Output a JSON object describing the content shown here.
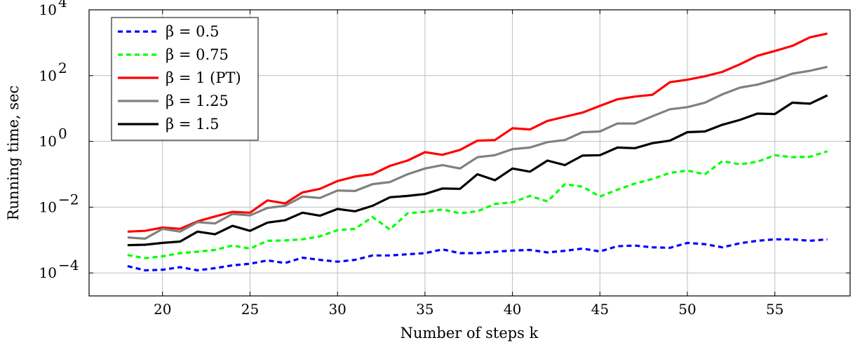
{
  "chart_data": {
    "type": "line",
    "title": "",
    "xlabel": "Number of steps k",
    "ylabel": "Running time, sec",
    "xlim": [
      15.8,
      59.3
    ],
    "ylim": [
      2e-05,
      10000
    ],
    "yscale": "log",
    "grid": true,
    "legend_position": "top-left",
    "x_ticks": [
      20,
      25,
      30,
      35,
      40,
      45,
      50,
      55
    ],
    "x_tick_labels": [
      "20",
      "25",
      "30",
      "35",
      "40",
      "45",
      "50",
      "55"
    ],
    "y_ticks": [
      0.0001,
      0.01,
      1,
      100,
      10000
    ],
    "y_tick_labels": [
      {
        "base": "10",
        "exp": "−4"
      },
      {
        "base": "10",
        "exp": "−2"
      },
      {
        "base": "10",
        "exp": "0"
      },
      {
        "base": "10",
        "exp": "2"
      },
      {
        "base": "10",
        "exp": "4"
      }
    ],
    "x": [
      18,
      19,
      20,
      21,
      22,
      23,
      24,
      25,
      26,
      27,
      28,
      29,
      30,
      31,
      32,
      33,
      34,
      35,
      36,
      37,
      38,
      39,
      40,
      41,
      42,
      43,
      44,
      45,
      46,
      47,
      48,
      49,
      50,
      51,
      52,
      53,
      54,
      55,
      56,
      57,
      58
    ],
    "series": [
      {
        "name": "β = 0.5",
        "color": "#0000ff",
        "dash": "dashed",
        "values": [
          0.00016,
          0.00012,
          0.000125,
          0.00015,
          0.00012,
          0.00014,
          0.00017,
          0.00019,
          0.00024,
          0.0002,
          0.00029,
          0.00025,
          0.00022,
          0.00025,
          0.00034,
          0.00034,
          0.00037,
          0.0004,
          0.00052,
          0.0004,
          0.0004,
          0.00044,
          0.00048,
          0.0005,
          0.00042,
          0.00047,
          0.00055,
          0.00045,
          0.00065,
          0.00068,
          0.0006,
          0.00058,
          0.00082,
          0.00075,
          0.0006,
          0.0008,
          0.00095,
          0.00105,
          0.00105,
          0.00095,
          0.00105
        ]
      },
      {
        "name": "β = 0.75",
        "color": "#00ff00",
        "dash": "dashed",
        "values": [
          0.00035,
          0.00028,
          0.00032,
          0.0004,
          0.00044,
          0.0005,
          0.00068,
          0.00055,
          0.00095,
          0.00097,
          0.00105,
          0.0013,
          0.002,
          0.0022,
          0.005,
          0.0021,
          0.0065,
          0.0072,
          0.0085,
          0.0065,
          0.0075,
          0.0125,
          0.014,
          0.022,
          0.015,
          0.05,
          0.042,
          0.021,
          0.034,
          0.052,
          0.072,
          0.11,
          0.13,
          0.1,
          0.25,
          0.2,
          0.24,
          0.38,
          0.33,
          0.34,
          0.5
        ]
      },
      {
        "name": "β = 1 (PT)",
        "color": "#ff0000",
        "dash": "solid",
        "values": [
          0.0018,
          0.0019,
          0.0024,
          0.0022,
          0.0037,
          0.0052,
          0.0072,
          0.0068,
          0.016,
          0.013,
          0.028,
          0.036,
          0.062,
          0.085,
          0.1,
          0.18,
          0.26,
          0.47,
          0.39,
          0.55,
          1.05,
          1.1,
          2.5,
          2.3,
          4.2,
          5.6,
          7.5,
          12,
          19,
          23,
          26,
          63,
          75,
          95,
          130,
          220,
          400,
          560,
          800,
          1450,
          1900
        ]
      },
      {
        "name": "β = 1.25",
        "color": "#808080",
        "dash": "solid",
        "values": [
          0.0012,
          0.0011,
          0.0022,
          0.0018,
          0.0035,
          0.0032,
          0.0062,
          0.0056,
          0.0095,
          0.011,
          0.021,
          0.019,
          0.032,
          0.031,
          0.05,
          0.058,
          0.1,
          0.15,
          0.19,
          0.15,
          0.33,
          0.38,
          0.58,
          0.65,
          0.95,
          1.1,
          1.9,
          2,
          3.5,
          3.5,
          5.8,
          9.5,
          11,
          15,
          27,
          43,
          53,
          75,
          115,
          140,
          185
        ]
      },
      {
        "name": "β = 1.5",
        "color": "#000000",
        "dash": "solid",
        "values": [
          0.0007,
          0.00072,
          0.00082,
          0.0009,
          0.0018,
          0.0015,
          0.0027,
          0.0019,
          0.0034,
          0.004,
          0.0068,
          0.0055,
          0.0088,
          0.0075,
          0.011,
          0.02,
          0.022,
          0.025,
          0.037,
          0.036,
          0.1,
          0.066,
          0.15,
          0.12,
          0.26,
          0.19,
          0.37,
          0.38,
          0.65,
          0.62,
          0.88,
          1.05,
          1.9,
          2,
          3.2,
          4.5,
          7,
          6.8,
          15,
          14,
          25
        ]
      }
    ]
  }
}
